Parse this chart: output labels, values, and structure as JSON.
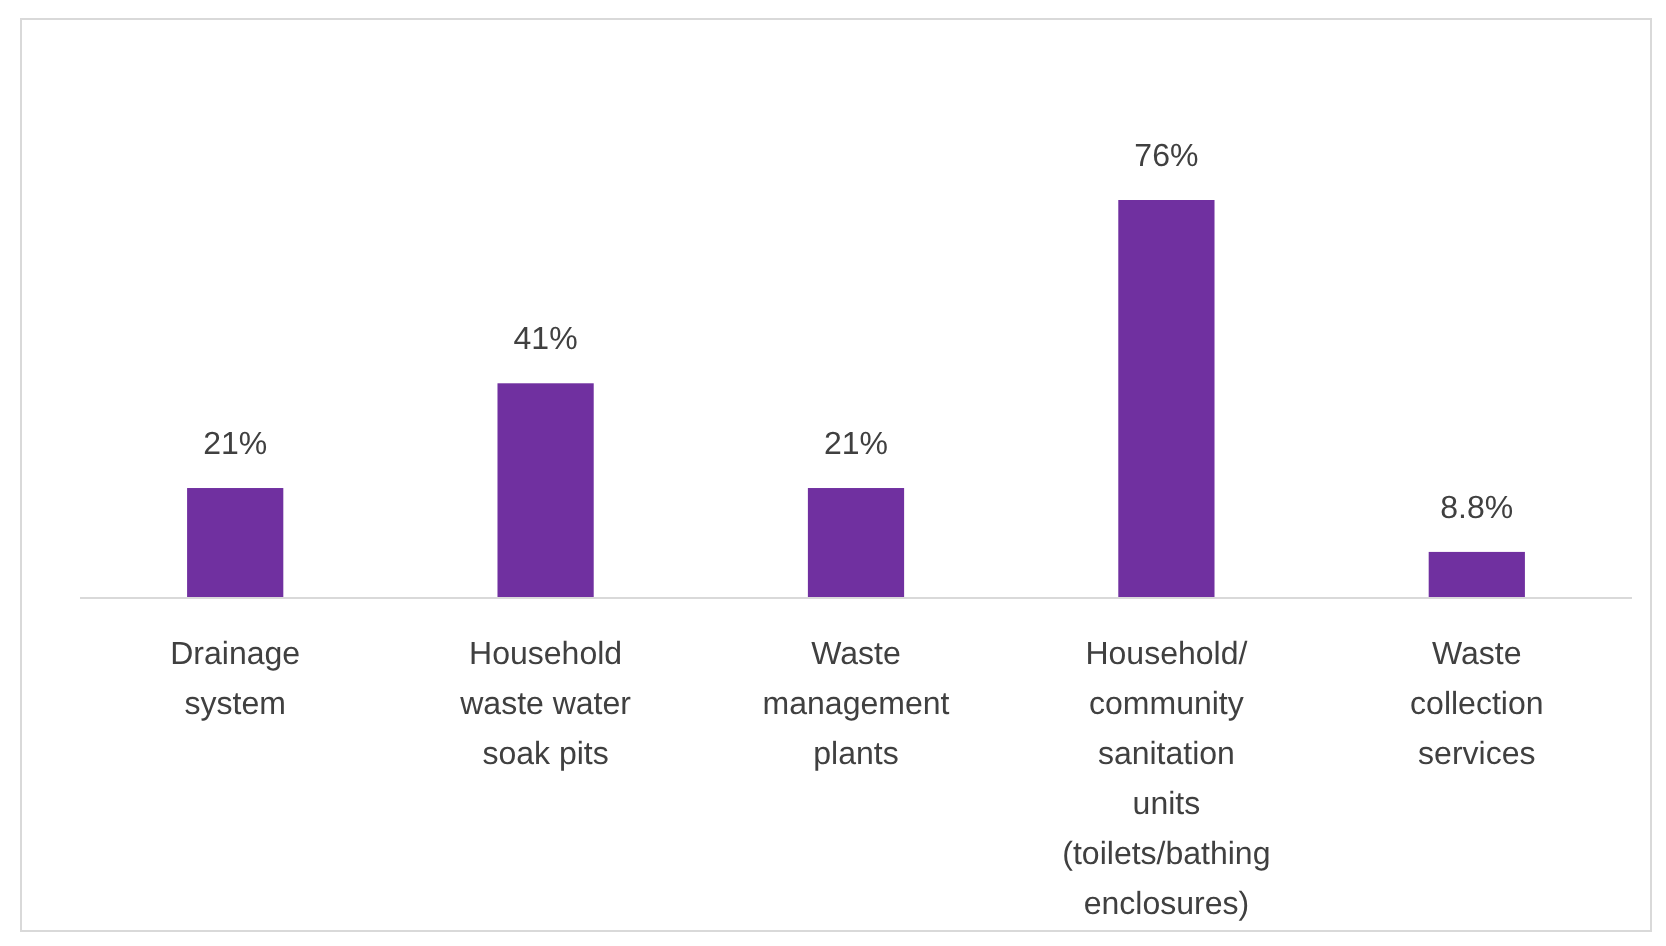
{
  "chart_data": {
    "type": "bar",
    "categories": [
      "Drainage system",
      "Household waste water soak pits",
      "Waste management plants",
      "Household/ community sanitation units (toilets/bathing enclosures)",
      "Waste collection services"
    ],
    "values": [
      21,
      41,
      21,
      76,
      8.8
    ],
    "value_labels": [
      "21%",
      "41%",
      "21%",
      "76%",
      "8.8%"
    ],
    "color": "#7030a0"
  }
}
